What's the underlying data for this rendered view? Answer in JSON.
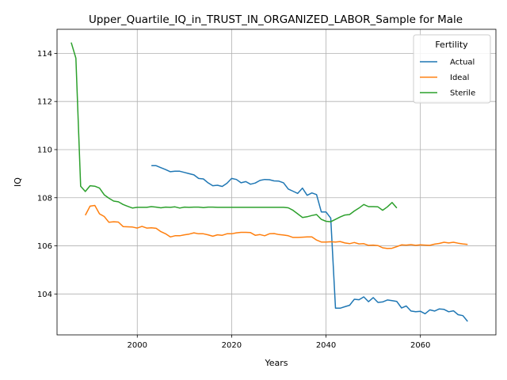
{
  "chart_data": {
    "type": "line",
    "title": "Upper_Quartile_IQ_in_TRUST_IN_ORGANIZED_LABOR_Sample for Male",
    "xlabel": "Years",
    "ylabel": "IQ",
    "xlim": [
      1983,
      2076
    ],
    "ylim": [
      102.3,
      115.0
    ],
    "xticks": [
      2000,
      2020,
      2040,
      2060
    ],
    "yticks": [
      104,
      106,
      108,
      110,
      112,
      114
    ],
    "grid": true,
    "legend": {
      "title": "Fertility",
      "position": "top-right"
    },
    "series": [
      {
        "name": "Actual",
        "color": "#1f77b4",
        "x": [
          2003,
          2004,
          2005,
          2006,
          2007,
          2008,
          2009,
          2010,
          2011,
          2012,
          2013,
          2014,
          2015,
          2016,
          2017,
          2018,
          2019,
          2020,
          2021,
          2022,
          2023,
          2024,
          2025,
          2026,
          2027,
          2028,
          2029,
          2030,
          2031,
          2032,
          2033,
          2034,
          2035,
          2036,
          2037,
          2038,
          2039,
          2040,
          2041,
          2042,
          2043,
          2044,
          2045,
          2046,
          2047,
          2048,
          2049,
          2050,
          2051,
          2052,
          2053,
          2054,
          2055,
          2056,
          2057,
          2058,
          2059,
          2060,
          2061,
          2062,
          2063,
          2064,
          2065,
          2066,
          2067,
          2068,
          2069,
          2070
        ],
        "y": [
          109.33,
          109.33,
          109.25,
          109.17,
          109.08,
          109.1,
          109.1,
          109.05,
          109.0,
          108.95,
          108.8,
          108.78,
          108.62,
          108.5,
          108.52,
          108.47,
          108.6,
          108.8,
          108.76,
          108.62,
          108.67,
          108.56,
          108.61,
          108.72,
          108.76,
          108.75,
          108.7,
          108.69,
          108.62,
          108.36,
          108.27,
          108.18,
          108.4,
          108.1,
          108.2,
          108.13,
          107.41,
          107.41,
          107.15,
          103.41,
          103.41,
          103.47,
          103.53,
          103.78,
          103.76,
          103.88,
          103.68,
          103.85,
          103.65,
          103.67,
          103.75,
          103.72,
          103.69,
          103.42,
          103.5,
          103.29,
          103.26,
          103.28,
          103.18,
          103.34,
          103.29,
          103.38,
          103.36,
          103.26,
          103.3,
          103.14,
          103.1,
          102.86
        ]
      },
      {
        "name": "Ideal",
        "color": "#ff7f0e",
        "x": [
          1989,
          1990,
          1991,
          1992,
          1993,
          1994,
          1995,
          1996,
          1997,
          1998,
          1999,
          2000,
          2001,
          2002,
          2003,
          2004,
          2005,
          2006,
          2007,
          2008,
          2009,
          2010,
          2011,
          2012,
          2013,
          2014,
          2015,
          2016,
          2017,
          2018,
          2019,
          2020,
          2021,
          2022,
          2023,
          2024,
          2025,
          2026,
          2027,
          2028,
          2029,
          2030,
          2031,
          2032,
          2033,
          2034,
          2035,
          2036,
          2037,
          2038,
          2039,
          2040,
          2041,
          2042,
          2043,
          2044,
          2045,
          2046,
          2047,
          2048,
          2049,
          2050,
          2051,
          2052,
          2053,
          2054,
          2055,
          2056,
          2057,
          2058,
          2059,
          2060,
          2061,
          2062,
          2063,
          2064,
          2065,
          2066,
          2067,
          2068,
          2069,
          2070
        ],
        "y": [
          107.27,
          107.65,
          107.68,
          107.33,
          107.22,
          106.98,
          107.0,
          106.99,
          106.8,
          106.79,
          106.78,
          106.74,
          106.81,
          106.74,
          106.75,
          106.73,
          106.59,
          106.5,
          106.37,
          106.42,
          106.42,
          106.46,
          106.49,
          106.54,
          106.5,
          106.5,
          106.46,
          106.4,
          106.46,
          106.44,
          106.5,
          106.5,
          106.54,
          106.56,
          106.56,
          106.55,
          106.44,
          106.47,
          106.42,
          106.5,
          106.51,
          106.47,
          106.45,
          106.42,
          106.35,
          106.35,
          106.36,
          106.37,
          106.37,
          106.24,
          106.16,
          106.16,
          106.17,
          106.16,
          106.18,
          106.12,
          106.09,
          106.14,
          106.08,
          106.09,
          106.02,
          106.03,
          106.01,
          105.92,
          105.89,
          105.9,
          105.97,
          106.04,
          106.03,
          106.05,
          106.02,
          106.04,
          106.03,
          106.02,
          106.07,
          106.1,
          106.15,
          106.12,
          106.15,
          106.11,
          106.08,
          106.06
        ]
      },
      {
        "name": "Sterile",
        "color": "#2ca02c",
        "x": [
          1986,
          1987,
          1988,
          1989,
          1990,
          1991,
          1992,
          1993,
          1994,
          1995,
          1996,
          1997,
          1998,
          1999,
          2000,
          2001,
          2002,
          2003,
          2004,
          2005,
          2006,
          2007,
          2008,
          2009,
          2010,
          2011,
          2012,
          2013,
          2014,
          2015,
          2016,
          2017,
          2018,
          2019,
          2020,
          2021,
          2022,
          2023,
          2024,
          2025,
          2026,
          2027,
          2028,
          2029,
          2030,
          2031,
          2032,
          2033,
          2034,
          2035,
          2036,
          2037,
          2038,
          2039,
          2040,
          2041,
          2042,
          2043,
          2044,
          2045,
          2046,
          2047,
          2048,
          2049,
          2050,
          2051,
          2052,
          2053,
          2054,
          2055
        ],
        "y": [
          114.45,
          113.8,
          108.48,
          108.26,
          108.5,
          108.48,
          108.4,
          108.12,
          107.98,
          107.86,
          107.83,
          107.72,
          107.64,
          107.57,
          107.6,
          107.6,
          107.6,
          107.63,
          107.61,
          107.58,
          107.61,
          107.6,
          107.62,
          107.57,
          107.61,
          107.6,
          107.61,
          107.61,
          107.59,
          107.61,
          107.61,
          107.6,
          107.6,
          107.6,
          107.6,
          107.6,
          107.6,
          107.6,
          107.6,
          107.6,
          107.6,
          107.6,
          107.6,
          107.6,
          107.6,
          107.6,
          107.58,
          107.48,
          107.33,
          107.18,
          107.21,
          107.26,
          107.3,
          107.1,
          107.02,
          107.0,
          107.1,
          107.2,
          107.28,
          107.3,
          107.45,
          107.57,
          107.72,
          107.63,
          107.63,
          107.62,
          107.48,
          107.62,
          107.8,
          107.57
        ]
      }
    ]
  }
}
